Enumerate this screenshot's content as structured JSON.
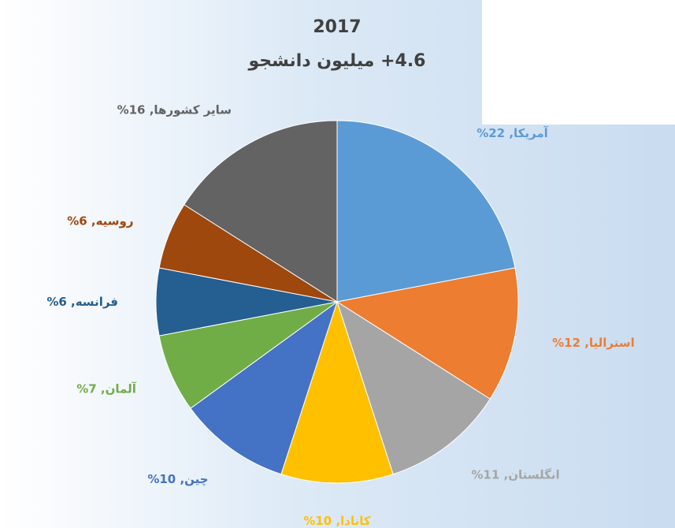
{
  "chart_data": {
    "type": "pie",
    "title": "2017",
    "subtitle": "4.6+ میلیون دانشجو",
    "slices": [
      {
        "label": "آمریکا",
        "value": 22,
        "color": "#5B9BD5",
        "label_text": "آمریکا, 22%"
      },
      {
        "label": "استرالیا",
        "value": 12,
        "color": "#ED7D31",
        "label_text": "استرالیا, 12%"
      },
      {
        "label": "انگلستان",
        "value": 11,
        "color": "#A5A5A5",
        "label_text": "انگلستان, 11%"
      },
      {
        "label": "کانادا",
        "value": 10,
        "color": "#FFC000",
        "label_text": "کانادا, 10%"
      },
      {
        "label": "چین",
        "value": 10,
        "color": "#4472C4",
        "label_text": "چین, 10%"
      },
      {
        "label": "آلمان",
        "value": 7,
        "color": "#70AD47",
        "label_text": "آلمان, 7%"
      },
      {
        "label": "فرانسه",
        "value": 6,
        "color": "#255E91",
        "label_text": "فرانسه, 6%"
      },
      {
        "label": "روسیه",
        "value": 6,
        "color": "#9E480E",
        "label_text": "روسیه, 6%"
      },
      {
        "label": "سایر کشورها",
        "value": 16,
        "color": "#636363",
        "label_text": "سایر کشورها, 16%"
      }
    ]
  }
}
